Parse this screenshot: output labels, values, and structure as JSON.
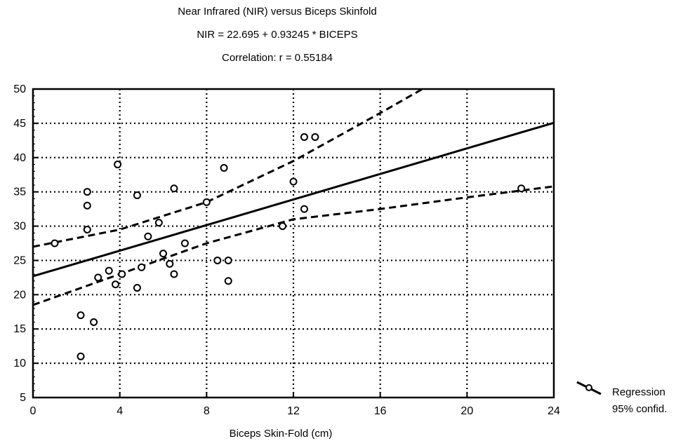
{
  "chart_data": {
    "type": "scatter",
    "title": "Near Infrared (NIR) versus Biceps Skinfold",
    "subtitle": "NIR = 22.695 + 0.93245 * BICEPS",
    "annotation": "Correlation: r = 0.55184",
    "xlabel": "Biceps Skin-Fold (cm)",
    "ylabel": "",
    "xlim": [
      0,
      24
    ],
    "ylim": [
      5,
      50
    ],
    "x_ticks": [
      0,
      4,
      8,
      12,
      16,
      20,
      24
    ],
    "y_ticks": [
      5,
      10,
      15,
      20,
      25,
      30,
      35,
      40,
      45,
      50
    ],
    "grid": true,
    "legend_placement": "right-bottom",
    "legend": [
      "Regression",
      "95% confid."
    ],
    "regression": {
      "intercept": 22.695,
      "slope": 0.93245
    },
    "confidence_upper": [
      [
        0,
        27.0
      ],
      [
        4,
        29.5
      ],
      [
        8,
        33.5
      ],
      [
        12,
        39.5
      ],
      [
        16,
        46.5
      ],
      [
        18.5,
        51
      ]
    ],
    "confidence_lower": [
      [
        0,
        18.5
      ],
      [
        4,
        23.0
      ],
      [
        8,
        27.5
      ],
      [
        12,
        31.0
      ],
      [
        16,
        32.5
      ],
      [
        20,
        34.2
      ],
      [
        24,
        35.8
      ]
    ],
    "points": [
      [
        1.0,
        27.5
      ],
      [
        2.2,
        17.0
      ],
      [
        2.2,
        11.0
      ],
      [
        2.5,
        35.0
      ],
      [
        2.5,
        33.0
      ],
      [
        2.5,
        29.5
      ],
      [
        2.8,
        16.0
      ],
      [
        3.0,
        22.5
      ],
      [
        3.5,
        23.5
      ],
      [
        3.8,
        21.5
      ],
      [
        3.9,
        39.0
      ],
      [
        4.1,
        23.0
      ],
      [
        4.8,
        34.5
      ],
      [
        4.8,
        21.0
      ],
      [
        5.0,
        24.0
      ],
      [
        5.3,
        28.5
      ],
      [
        5.8,
        30.5
      ],
      [
        6.0,
        26.0
      ],
      [
        6.3,
        24.5
      ],
      [
        6.5,
        35.5
      ],
      [
        6.5,
        23.0
      ],
      [
        7.0,
        27.5
      ],
      [
        8.0,
        33.5
      ],
      [
        8.5,
        25.0
      ],
      [
        8.8,
        38.5
      ],
      [
        9.0,
        25.0
      ],
      [
        9.0,
        22.0
      ],
      [
        11.5,
        30.0
      ],
      [
        12.0,
        36.5
      ],
      [
        12.5,
        43.0
      ],
      [
        12.5,
        32.5
      ],
      [
        13.0,
        43.0
      ],
      [
        22.5,
        35.5
      ]
    ],
    "colors": {
      "marks": "#000000",
      "background": "#ffffff"
    }
  }
}
